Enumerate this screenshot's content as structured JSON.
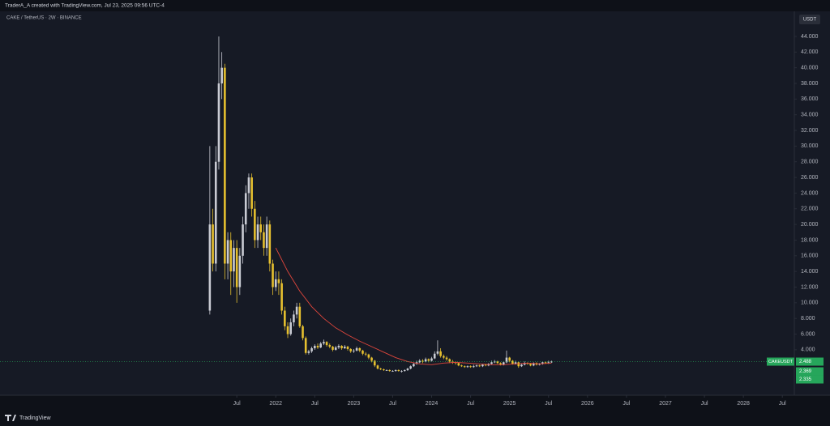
{
  "header": "TraderA_A created with TradingView.com, Jul 23, 2025 09:56 UTC-4",
  "symbol": "CAKE / TetherUS · 2W · BINANCE",
  "currency": "USDT",
  "footer": "TradingView",
  "chart_data": {
    "type": "candlestick",
    "open": [
      9,
      20,
      15,
      28,
      38,
      40,
      15,
      18,
      14,
      17,
      12,
      16,
      20,
      24,
      26,
      22,
      18,
      20,
      19,
      17,
      20,
      15,
      12,
      13,
      12.5,
      9,
      7,
      6,
      7.5,
      8.5,
      9.5,
      7,
      5.5,
      3.6,
      3.8,
      4.2,
      4.5,
      4.3,
      4.8,
      5,
      4.6,
      4.4,
      4,
      4.3,
      4.5,
      4.2,
      4.4,
      4.1,
      3.8,
      3.9,
      4.2,
      3.9,
      3.5,
      3.4,
      3,
      2.6,
      2,
      1.6,
      1.5,
      1.4,
      1.4,
      1.3,
      1.3,
      1.4,
      1.3,
      1.3,
      1.4,
      1.6,
      1.9,
      2.2,
      2.4,
      2.6,
      2.5,
      2.8,
      2.6,
      2.9,
      3.5,
      3.8,
      3.2,
      3,
      2.8,
      2.5,
      2.4,
      2.3,
      2,
      1.9,
      1.8,
      1.9,
      1.8,
      1.9,
      2,
      1.9,
      2.1,
      2,
      2.2,
      2.4,
      2.5,
      2.3,
      2.1,
      2.4,
      3,
      2.6,
      2.2,
      2.4,
      1.9,
      2.1,
      2.3,
      2.2,
      2,
      2.3,
      2.1,
      2.2,
      2.4,
      2.3,
      2.4
    ],
    "high": [
      30,
      22,
      30,
      44,
      42,
      40.5,
      19,
      19,
      18,
      18,
      17,
      21,
      25,
      26.5,
      26.5,
      23,
      21,
      21,
      20,
      21,
      20.5,
      15.5,
      14,
      14,
      13,
      9.5,
      7.5,
      8,
      9,
      10,
      10,
      7.2,
      5.7,
      4,
      4.4,
      4.7,
      4.8,
      5,
      5.3,
      5.1,
      4.8,
      4.5,
      4.5,
      4.7,
      4.6,
      4.6,
      4.5,
      4.2,
      4.1,
      4.4,
      4.3,
      4,
      3.7,
      3.5,
      3.1,
      2.7,
      2.1,
      1.7,
      1.6,
      1.5,
      1.5,
      1.4,
      1.5,
      1.5,
      1.4,
      1.5,
      1.7,
      2,
      2.3,
      2.6,
      2.8,
      2.8,
      3,
      2.9,
      3.1,
      3.8,
      5.2,
      4.2,
      3.4,
      3.2,
      2.9,
      2.7,
      2.5,
      2.4,
      2.1,
      2,
      2,
      2,
      2.1,
      2.1,
      2.1,
      2.2,
      2.2,
      2.3,
      2.6,
      2.7,
      2.6,
      2.4,
      2.5,
      3.9,
      3.1,
      2.7,
      2.6,
      2.5,
      2.2,
      2.5,
      2.4,
      2.3,
      2.4,
      2.4,
      2.3,
      2.5,
      2.5,
      2.6,
      2.6
    ],
    "low": [
      8.5,
      14,
      14,
      27,
      36,
      13,
      13,
      11,
      12,
      10,
      11,
      15,
      19,
      22,
      21,
      17,
      17,
      18,
      16,
      16,
      14,
      11,
      11.5,
      11,
      8.5,
      6.5,
      5.5,
      5.8,
      7,
      8,
      6.8,
      5.2,
      3.4,
      3.4,
      3.6,
      4,
      4.1,
      4.2,
      4.6,
      4.4,
      4.2,
      3.8,
      3.9,
      4.1,
      4,
      4.1,
      3.9,
      3.6,
      3.6,
      3.8,
      3.7,
      3.3,
      3.2,
      2.8,
      2.4,
      1.8,
      1.5,
      1.4,
      1.3,
      1.3,
      1.2,
      1.2,
      1.2,
      1.2,
      1.1,
      1.2,
      1.3,
      1.5,
      1.8,
      2.1,
      2.3,
      2.3,
      2.4,
      2.4,
      2.5,
      2.8,
      3.3,
      3,
      2.8,
      2.6,
      2.3,
      2.2,
      2.1,
      1.9,
      1.8,
      1.7,
      1.7,
      1.7,
      1.7,
      1.8,
      1.8,
      1.8,
      1.9,
      1.9,
      2.1,
      2.3,
      2.2,
      2,
      2,
      2.3,
      2.4,
      2.1,
      2.1,
      1.7,
      1.8,
      2,
      2.1,
      1.9,
      1.9,
      2,
      2,
      2.1,
      2.2,
      2.2,
      2.33
    ],
    "close": [
      20,
      15,
      28,
      38,
      40,
      15,
      18,
      14,
      17,
      12,
      16,
      20,
      24,
      26,
      22,
      18,
      20,
      19,
      17,
      20,
      15,
      12,
      13,
      12.5,
      9,
      7,
      6,
      7.5,
      8.5,
      9.5,
      7,
      5.5,
      3.6,
      3.8,
      4.2,
      4.5,
      4.3,
      4.8,
      5,
      4.6,
      4.4,
      4,
      4.3,
      4.5,
      4.2,
      4.4,
      4.1,
      3.8,
      3.9,
      4.2,
      3.9,
      3.5,
      3.4,
      3,
      2.6,
      2,
      1.6,
      1.5,
      1.4,
      1.4,
      1.3,
      1.3,
      1.4,
      1.3,
      1.3,
      1.4,
      1.6,
      1.9,
      2.2,
      2.4,
      2.6,
      2.5,
      2.8,
      2.6,
      2.9,
      3.5,
      3.8,
      3.2,
      3,
      2.8,
      2.5,
      2.4,
      2.3,
      2,
      1.9,
      1.8,
      1.9,
      1.8,
      1.9,
      2,
      1.9,
      2.1,
      2,
      2.2,
      2.4,
      2.5,
      2.3,
      2.1,
      2.4,
      3,
      2.6,
      2.2,
      2.4,
      1.9,
      2.1,
      2.3,
      2.2,
      2,
      2.3,
      2.1,
      2.2,
      2.4,
      2.3,
      2.4,
      2.49
    ],
    "up_color": "#c9cbd3",
    "down_color": "#e6c02f",
    "ma": {
      "color": "#e0463c",
      "x": [
        22,
        26,
        30,
        34,
        38,
        42,
        46,
        50,
        54,
        58,
        62,
        66,
        70,
        74,
        78,
        82,
        86,
        90,
        94,
        98,
        102,
        106,
        110,
        114
      ],
      "values": [
        17,
        14,
        11.5,
        9.5,
        8,
        6.8,
        5.9,
        5.1,
        4.4,
        3.7,
        3,
        2.5,
        2.2,
        2.1,
        2.3,
        2.4,
        2.3,
        2.2,
        2.1,
        2.1,
        2.2,
        2.3,
        2.2,
        2.3
      ]
    },
    "last_price": 2.488,
    "last_label": "CAKEUSDT",
    "last_color": "#26a65b",
    "price_boxes": [
      2.369,
      2.335
    ],
    "xlim": [
      -70,
      195
    ],
    "xticks": [
      {
        "value": 9,
        "label": "Jul"
      },
      {
        "value": 22,
        "label": "2022"
      },
      {
        "value": 35,
        "label": "Jul"
      },
      {
        "value": 48,
        "label": "2023"
      },
      {
        "value": 61,
        "label": "Jul"
      },
      {
        "value": 74,
        "label": "2024"
      },
      {
        "value": 87,
        "label": "Jul"
      },
      {
        "value": 100,
        "label": "2025"
      },
      {
        "value": 113,
        "label": "Jul"
      },
      {
        "value": 126,
        "label": "2026"
      },
      {
        "value": 139,
        "label": "Jul"
      },
      {
        "value": 152,
        "label": "2027"
      },
      {
        "value": 165,
        "label": "Jul"
      },
      {
        "value": 178,
        "label": "2028"
      },
      {
        "value": 191,
        "label": "Jul"
      }
    ],
    "ylim": [
      -1.8,
      47.2
    ],
    "yticks": [
      {
        "value": 4,
        "label": "4.000"
      },
      {
        "value": 6,
        "label": "6.000"
      },
      {
        "value": 8,
        "label": "8.000"
      },
      {
        "value": 10,
        "label": "10.000"
      },
      {
        "value": 12,
        "label": "12.000"
      },
      {
        "value": 14,
        "label": "14.000"
      },
      {
        "value": 16,
        "label": "16.000"
      },
      {
        "value": 18,
        "label": "18.000"
      },
      {
        "value": 20,
        "label": "20.000"
      },
      {
        "value": 22,
        "label": "22.000"
      },
      {
        "value": 24,
        "label": "24.000"
      },
      {
        "value": 26,
        "label": "26.000"
      },
      {
        "value": 28,
        "label": "28.000"
      },
      {
        "value": 30,
        "label": "30.000"
      },
      {
        "value": 32,
        "label": "32.000"
      },
      {
        "value": 34,
        "label": "34.000"
      },
      {
        "value": 36,
        "label": "36.000"
      },
      {
        "value": 38,
        "label": "38.000"
      },
      {
        "value": 40,
        "label": "40.000"
      },
      {
        "value": 42,
        "label": "42.000"
      },
      {
        "value": 44,
        "label": "44.000"
      }
    ]
  }
}
